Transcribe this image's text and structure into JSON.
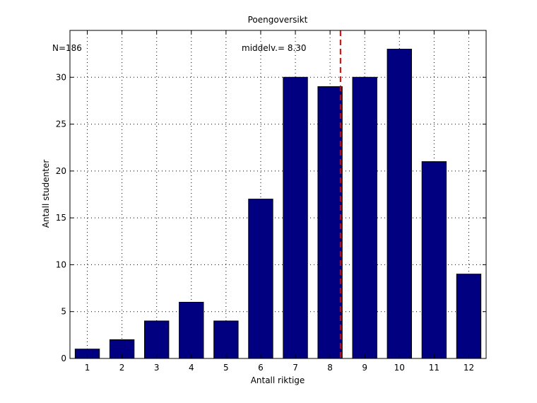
{
  "chart_data": {
    "type": "bar",
    "title": "Poengoversikt",
    "xlabel": "Antall riktige",
    "ylabel": "Antall studenter",
    "categories": [
      "1",
      "2",
      "3",
      "4",
      "5",
      "6",
      "7",
      "8",
      "9",
      "10",
      "11",
      "12"
    ],
    "values": [
      1,
      2,
      4,
      6,
      4,
      17,
      30,
      29,
      30,
      33,
      21,
      9
    ],
    "ylim": [
      0,
      35
    ],
    "yticks": [
      0,
      5,
      10,
      15,
      20,
      25,
      30
    ],
    "grid": true,
    "bar_color": "#000080",
    "mean_line": {
      "value": 8.3,
      "color": "#e00000",
      "style": "dashed"
    },
    "annotations": {
      "n_text": "N=186",
      "mean_text": "middelv.=  8.30"
    }
  }
}
